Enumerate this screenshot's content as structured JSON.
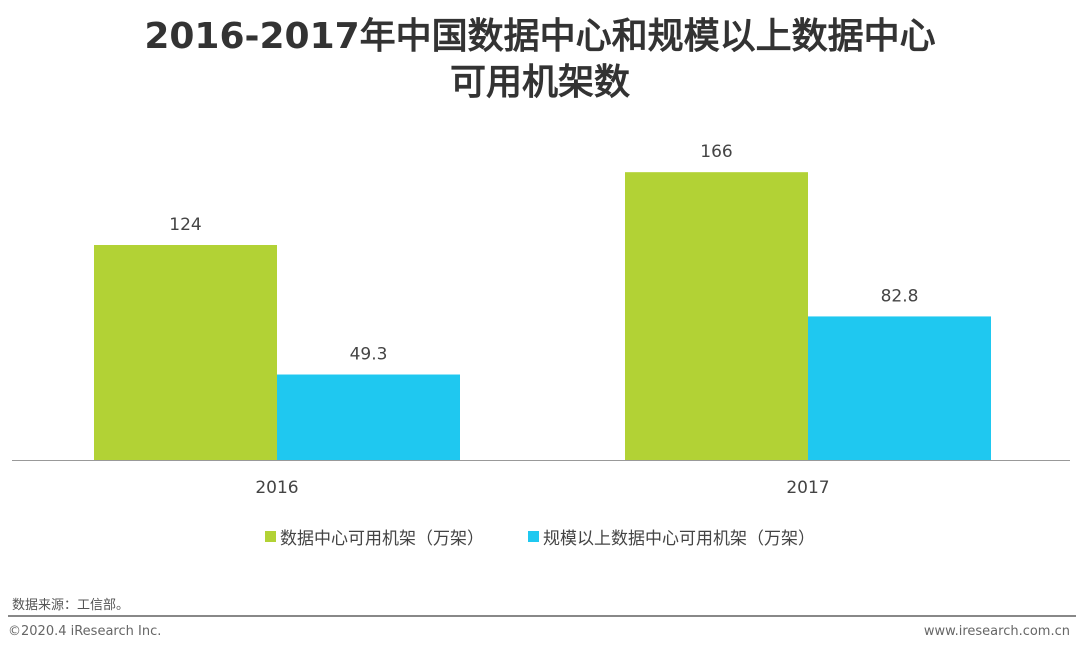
{
  "chart_data": {
    "type": "bar",
    "title": "2016-2017年中国数据中心和规模以上数据中心可用机架数",
    "categories": [
      "2016",
      "2017"
    ],
    "series": [
      {
        "name": "数据中心可用机架（万架）",
        "values": [
          124,
          166
        ],
        "color": "#b2d235"
      },
      {
        "name": "规模以上数据中心可用机架（万架）",
        "values": [
          49.3,
          82.8
        ],
        "color": "#1fc8f0"
      }
    ],
    "data_labels": [
      [
        "124",
        "166"
      ],
      [
        "49.3",
        "82.8"
      ]
    ],
    "xlabel": "",
    "ylabel": "",
    "ylim": [
      0,
      180
    ],
    "grid": false,
    "legend_position": "bottom"
  },
  "title_line1": "2016-2017年中国数据中心和规模以上数据中心",
  "title_line2": "可用机架数",
  "source": "数据来源：工信部。",
  "copyright": "©2020.4 iResearch Inc.",
  "website": "www.iresearch.com.cn"
}
